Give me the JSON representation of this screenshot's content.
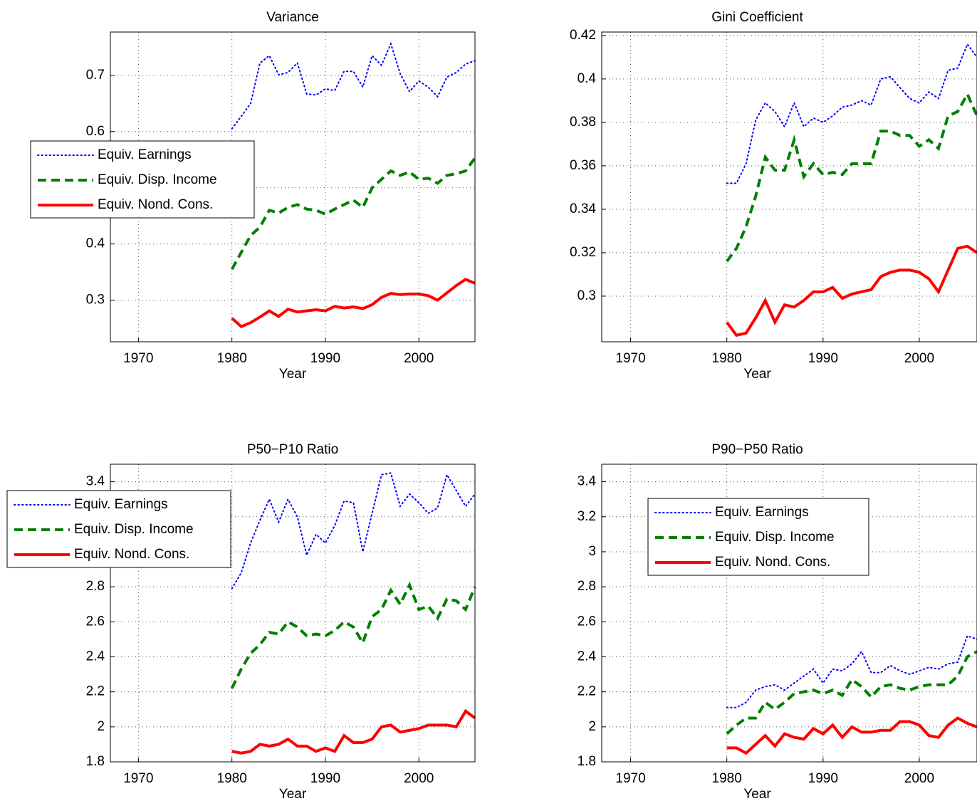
{
  "chart_data": [
    {
      "type": "line",
      "title": "Variance",
      "x_label": "Year",
      "x": [
        1980,
        1981,
        1982,
        1983,
        1984,
        1985,
        1986,
        1987,
        1988,
        1989,
        1990,
        1991,
        1992,
        1993,
        1994,
        1995,
        1996,
        1997,
        1998,
        1999,
        2000,
        2001,
        2002,
        2003,
        2004,
        2005,
        2006
      ],
      "xlim": [
        1967,
        2006
      ],
      "xticks": [
        1970,
        1980,
        1990,
        2000
      ],
      "ylim": [
        0.226,
        0.777
      ],
      "yticks": [
        0.3,
        0.4,
        0.5,
        0.6,
        0.7
      ],
      "grid": true,
      "legend": "west",
      "series": [
        {
          "name": "Equiv. Earnings",
          "color": "#0000ff",
          "linestyle": ":",
          "values": [
            0.605,
            0.627,
            0.65,
            0.722,
            0.735,
            0.701,
            0.705,
            0.722,
            0.667,
            0.665,
            0.676,
            0.673,
            0.707,
            0.707,
            0.679,
            0.735,
            0.718,
            0.756,
            0.703,
            0.671,
            0.69,
            0.679,
            0.662,
            0.697,
            0.705,
            0.72,
            0.726
          ]
        },
        {
          "name": "Equiv. Disp. Income",
          "color": "#007f00",
          "linestyle": "--",
          "values": [
            0.355,
            0.385,
            0.415,
            0.43,
            0.46,
            0.455,
            0.465,
            0.47,
            0.462,
            0.46,
            0.453,
            0.462,
            0.47,
            0.478,
            0.465,
            0.5,
            0.515,
            0.53,
            0.522,
            0.528,
            0.515,
            0.517,
            0.508,
            0.522,
            0.525,
            0.53,
            0.553
          ]
        },
        {
          "name": "Equiv. Nond. Cons.",
          "color": "#ff0000",
          "linestyle": "-",
          "values": [
            0.268,
            0.253,
            0.26,
            0.27,
            0.281,
            0.271,
            0.284,
            0.279,
            0.281,
            0.283,
            0.281,
            0.289,
            0.286,
            0.288,
            0.285,
            0.292,
            0.305,
            0.312,
            0.31,
            0.311,
            0.311,
            0.308,
            0.3,
            0.313,
            0.326,
            0.337,
            0.33
          ]
        }
      ]
    },
    {
      "type": "line",
      "title": "Gini Coefficient",
      "x_label": "Year",
      "x": [
        1980,
        1981,
        1982,
        1983,
        1984,
        1985,
        1986,
        1987,
        1988,
        1989,
        1990,
        1991,
        1992,
        1993,
        1994,
        1995,
        1996,
        1997,
        1998,
        1999,
        2000,
        2001,
        2002,
        2003,
        2004,
        2005,
        2006
      ],
      "xlim": [
        1967,
        2006
      ],
      "xticks": [
        1970,
        1980,
        1990,
        2000
      ],
      "ylim": [
        0.279,
        0.4216
      ],
      "yticks": [
        0.3,
        0.32,
        0.34,
        0.36,
        0.38,
        0.4,
        0.42
      ],
      "grid": true,
      "series": [
        {
          "name": "Equiv. Earnings",
          "color": "#0000ff",
          "linestyle": ":",
          "values": [
            0.352,
            0.352,
            0.361,
            0.381,
            0.389,
            0.385,
            0.378,
            0.389,
            0.378,
            0.382,
            0.38,
            0.383,
            0.387,
            0.388,
            0.39,
            0.388,
            0.4,
            0.401,
            0.396,
            0.391,
            0.389,
            0.394,
            0.391,
            0.404,
            0.405,
            0.416,
            0.41
          ]
        },
        {
          "name": "Equiv. Disp. Income",
          "color": "#007f00",
          "linestyle": "--",
          "values": [
            0.316,
            0.322,
            0.332,
            0.346,
            0.364,
            0.358,
            0.358,
            0.372,
            0.355,
            0.361,
            0.356,
            0.357,
            0.356,
            0.361,
            0.361,
            0.361,
            0.376,
            0.376,
            0.374,
            0.374,
            0.369,
            0.372,
            0.368,
            0.383,
            0.385,
            0.393,
            0.383
          ]
        },
        {
          "name": "Equiv. Nond. Cons.",
          "color": "#ff0000",
          "linestyle": "-",
          "values": [
            0.288,
            0.282,
            0.283,
            0.29,
            0.298,
            0.288,
            0.296,
            0.295,
            0.298,
            0.302,
            0.302,
            0.304,
            0.299,
            0.301,
            0.302,
            0.303,
            0.309,
            0.311,
            0.312,
            0.312,
            0.311,
            0.308,
            0.302,
            0.312,
            0.322,
            0.323,
            0.32
          ]
        }
      ]
    },
    {
      "type": "line",
      "title": "P50−P10 Ratio",
      "x_label": "Year",
      "x": [
        1980,
        1981,
        1982,
        1983,
        1984,
        1985,
        1986,
        1987,
        1988,
        1989,
        1990,
        1991,
        1992,
        1993,
        1994,
        1995,
        1996,
        1997,
        1998,
        1999,
        2000,
        2001,
        2002,
        2003,
        2004,
        2005,
        2006
      ],
      "xlim": [
        1967,
        2006
      ],
      "xticks": [
        1970,
        1980,
        1990,
        2000
      ],
      "ylim": [
        1.8,
        3.5
      ],
      "yticks": [
        1.8,
        2,
        2.2,
        2.4,
        2.6,
        2.8,
        3,
        3.2,
        3.4
      ],
      "grid": true,
      "legend": "northwest",
      "series": [
        {
          "name": "Equiv. Earnings",
          "color": "#0000ff",
          "linestyle": ":",
          "values": [
            2.79,
            2.88,
            3.05,
            3.18,
            3.3,
            3.17,
            3.3,
            3.2,
            2.98,
            3.1,
            3.05,
            3.15,
            3.29,
            3.28,
            3.0,
            3.22,
            3.44,
            3.45,
            3.26,
            3.33,
            3.28,
            3.22,
            3.25,
            3.44,
            3.35,
            3.26,
            3.33
          ]
        },
        {
          "name": "Equiv. Disp. Income",
          "color": "#007f00",
          "linestyle": "--",
          "values": [
            2.22,
            2.33,
            2.42,
            2.47,
            2.54,
            2.53,
            2.6,
            2.57,
            2.52,
            2.53,
            2.52,
            2.55,
            2.6,
            2.57,
            2.48,
            2.63,
            2.67,
            2.78,
            2.7,
            2.81,
            2.67,
            2.69,
            2.62,
            2.73,
            2.72,
            2.67,
            2.8
          ]
        },
        {
          "name": "Equiv. Nond. Cons.",
          "color": "#ff0000",
          "linestyle": "-",
          "values": [
            1.86,
            1.85,
            1.86,
            1.9,
            1.89,
            1.9,
            1.93,
            1.89,
            1.89,
            1.86,
            1.88,
            1.86,
            1.95,
            1.91,
            1.91,
            1.93,
            2.0,
            2.01,
            1.97,
            1.98,
            1.99,
            2.01,
            2.01,
            2.01,
            2.0,
            2.09,
            2.05
          ]
        }
      ]
    },
    {
      "type": "line",
      "title": "P90−P50 Ratio",
      "x_label": "Year",
      "x": [
        1980,
        1981,
        1982,
        1983,
        1984,
        1985,
        1986,
        1987,
        1988,
        1989,
        1990,
        1991,
        1992,
        1993,
        1994,
        1995,
        1996,
        1997,
        1998,
        1999,
        2000,
        2001,
        2002,
        2003,
        2004,
        2005,
        2006
      ],
      "xlim": [
        1967,
        2006
      ],
      "xticks": [
        1970,
        1980,
        1990,
        2000
      ],
      "ylim": [
        1.8,
        3.5
      ],
      "yticks": [
        1.8,
        2,
        2.2,
        2.4,
        2.6,
        2.8,
        3,
        3.2,
        3.4
      ],
      "grid": true,
      "legend": "northwest",
      "series": [
        {
          "name": "Equiv. Earnings",
          "color": "#0000ff",
          "linestyle": ":",
          "values": [
            2.11,
            2.11,
            2.14,
            2.21,
            2.23,
            2.24,
            2.21,
            2.25,
            2.29,
            2.33,
            2.25,
            2.33,
            2.32,
            2.36,
            2.43,
            2.31,
            2.31,
            2.35,
            2.32,
            2.3,
            2.32,
            2.34,
            2.33,
            2.36,
            2.37,
            2.52,
            2.5
          ]
        },
        {
          "name": "Equiv. Disp. Income",
          "color": "#007f00",
          "linestyle": "--",
          "values": [
            1.96,
            2.01,
            2.05,
            2.05,
            2.14,
            2.1,
            2.14,
            2.19,
            2.2,
            2.21,
            2.19,
            2.21,
            2.18,
            2.27,
            2.23,
            2.17,
            2.23,
            2.24,
            2.22,
            2.21,
            2.23,
            2.24,
            2.24,
            2.24,
            2.29,
            2.4,
            2.43
          ]
        },
        {
          "name": "Equiv. Nond. Cons.",
          "color": "#ff0000",
          "linestyle": "-",
          "values": [
            1.88,
            1.88,
            1.85,
            1.9,
            1.95,
            1.89,
            1.96,
            1.94,
            1.93,
            1.99,
            1.96,
            2.01,
            1.94,
            2.0,
            1.97,
            1.97,
            1.98,
            1.98,
            2.03,
            2.03,
            2.01,
            1.95,
            1.94,
            2.01,
            2.05,
            2.02,
            2.0
          ]
        }
      ]
    }
  ]
}
